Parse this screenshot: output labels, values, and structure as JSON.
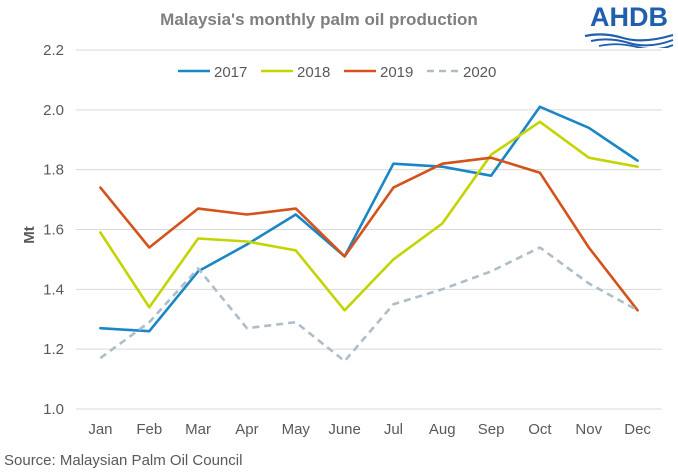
{
  "chart_data": {
    "type": "line",
    "title": "Malaysia's monthly palm oil production",
    "xlabel": "",
    "ylabel": "Mt",
    "ylim": [
      1.0,
      2.2
    ],
    "yticks": [
      "1.0",
      "1.2",
      "1.4",
      "1.6",
      "1.8",
      "2.0",
      "2.2"
    ],
    "grid": true,
    "legend_position": "top",
    "categories": [
      "Jan",
      "Feb",
      "Mar",
      "Apr",
      "May",
      "June",
      "Jul",
      "Aug",
      "Sep",
      "Oct",
      "Nov",
      "Dec"
    ],
    "series": [
      {
        "name": "2017",
        "color": "#1b86c6",
        "dashed": false,
        "values": [
          1.27,
          1.26,
          1.46,
          1.55,
          1.65,
          1.51,
          1.82,
          1.81,
          1.78,
          2.01,
          1.94,
          1.83
        ]
      },
      {
        "name": "2018",
        "color": "#c3d400",
        "dashed": false,
        "values": [
          1.59,
          1.34,
          1.57,
          1.56,
          1.53,
          1.33,
          1.5,
          1.62,
          1.85,
          1.96,
          1.84,
          1.81
        ]
      },
      {
        "name": "2019",
        "color": "#d4521c",
        "dashed": false,
        "values": [
          1.74,
          1.54,
          1.67,
          1.65,
          1.67,
          1.51,
          1.74,
          1.82,
          1.84,
          1.79,
          1.54,
          1.33
        ]
      },
      {
        "name": "2020",
        "color": "#aebdc8",
        "dashed": true,
        "values": [
          1.17,
          1.29,
          1.47,
          1.27,
          1.29,
          1.16,
          1.35,
          1.4,
          1.46,
          1.54,
          1.42,
          1.33
        ]
      }
    ]
  },
  "logo": {
    "text": "AHDB",
    "color": "#1f5fae"
  },
  "source": "Source: Malaysian Palm Oil Council"
}
